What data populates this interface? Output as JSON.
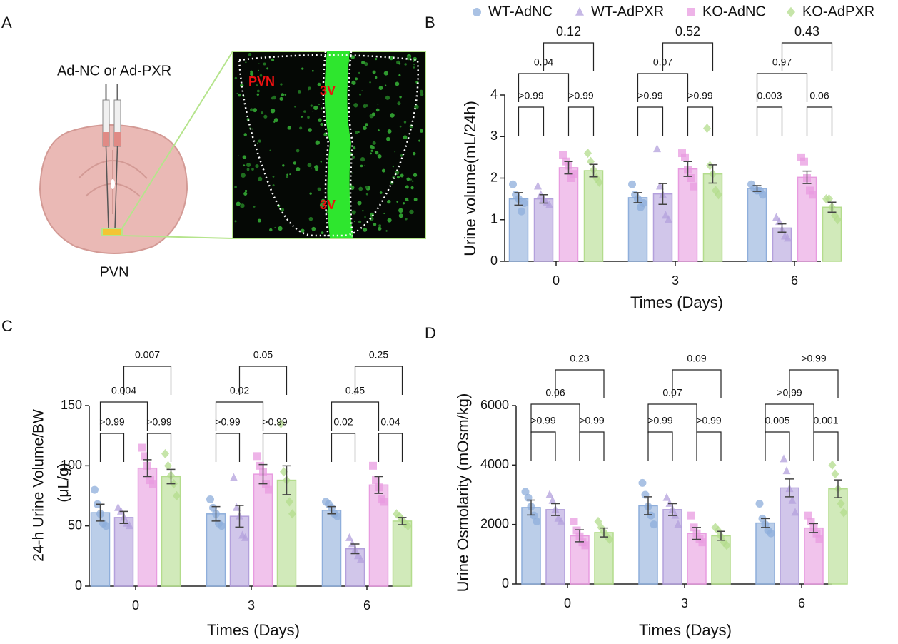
{
  "panel_a": {
    "panel": "A",
    "injection": "Ad-NC or Ad-PXR",
    "region": "PVN",
    "image_labels": [
      "PVN",
      "3V",
      "3V"
    ]
  },
  "chart_data": [
    {
      "type": "bar",
      "panel": "B",
      "ylabel": "Urine volume(mL/24h)",
      "xlabel": "Times (Days)",
      "legend": "top",
      "categories": [
        "0",
        "3",
        "6"
      ],
      "ylim": [
        0,
        4
      ],
      "yticks": [
        0,
        1,
        2,
        3,
        4
      ],
      "series": [
        {
          "name": "WT-AdNC",
          "color": "#8eaedb",
          "marker": "circle",
          "values": [
            1.5,
            1.53,
            1.75
          ],
          "errors": [
            0.15,
            0.12,
            0.07
          ],
          "points": [
            [
              1.85,
              1.6,
              1.5,
              1.2,
              1.4
            ],
            [
              1.85,
              1.6,
              1.5,
              1.3,
              1.4
            ],
            [
              1.85,
              1.75,
              1.7,
              1.7,
              1.6
            ]
          ]
        },
        {
          "name": "WT-AdPXR",
          "color": "#b3a0dc",
          "marker": "triangle",
          "values": [
            1.5,
            1.62,
            0.8
          ],
          "errors": [
            0.1,
            0.25,
            0.1
          ],
          "points": [
            [
              1.8,
              1.6,
              1.5,
              1.4,
              1.35
            ],
            [
              2.7,
              1.8,
              1.6,
              1.1,
              1.0
            ],
            [
              1.05,
              0.95,
              0.75,
              0.6,
              0.55
            ]
          ]
        },
        {
          "name": "KO-AdNC",
          "color": "#e89be0",
          "marker": "square",
          "values": [
            2.25,
            2.22,
            2.02
          ],
          "errors": [
            0.15,
            0.18,
            0.15
          ],
          "points": [
            [
              2.55,
              2.4,
              2.3,
              2.0,
              2.1
            ],
            [
              2.6,
              2.5,
              2.2,
              2.0,
              1.8
            ],
            [
              2.5,
              2.4,
              2.0,
              1.7,
              1.6
            ]
          ]
        },
        {
          "name": "KO-AdPXR",
          "color": "#b3dc8c",
          "marker": "diamond",
          "values": [
            2.18,
            2.1,
            1.3
          ],
          "errors": [
            0.15,
            0.22,
            0.12
          ],
          "points": [
            [
              2.6,
              2.4,
              2.2,
              2.0,
              1.9
            ],
            [
              3.2,
              2.3,
              2.1,
              1.7,
              1.6
            ],
            [
              1.5,
              1.5,
              1.3,
              1.1,
              1.0
            ]
          ]
        }
      ],
      "p_values": [
        [
          ">0.99",
          ">0.99",
          "0.04",
          "0.12"
        ],
        [
          ">0.99",
          ">0.99",
          "0.07",
          "0.52"
        ],
        [
          "0.003",
          "0.06",
          "0.97",
          "0.43"
        ]
      ]
    },
    {
      "type": "bar",
      "panel": "C",
      "ylabel": [
        "24-h Urine Volume/BW",
        "(μL/g)"
      ],
      "xlabel": "Times (Days)",
      "categories": [
        "0",
        "3",
        "6"
      ],
      "ylim": [
        0,
        150
      ],
      "yticks": [
        0,
        50,
        100,
        150
      ],
      "series": [
        {
          "color": "#8eaedb",
          "marker": "circle",
          "values": [
            61,
            60,
            63
          ],
          "errors": [
            7,
            6,
            3
          ],
          "points": [
            [
              80,
              68,
              60,
              52,
              50
            ],
            [
              72,
              65,
              60,
              52,
              50
            ],
            [
              70,
              68,
              65,
              60,
              58
            ]
          ]
        },
        {
          "color": "#b3a0dc",
          "marker": "triangle",
          "values": [
            57,
            58,
            31
          ],
          "errors": [
            5,
            9,
            4
          ],
          "points": [
            [
              65,
              62,
              57,
              52,
              50
            ],
            [
              90,
              65,
              58,
              42,
              40
            ],
            [
              40,
              35,
              30,
              25,
              22
            ]
          ]
        },
        {
          "color": "#e89be0",
          "marker": "square",
          "values": [
            98,
            93,
            84
          ],
          "errors": [
            7,
            8,
            7
          ],
          "points": [
            [
              115,
              108,
              100,
              88,
              85
            ],
            [
              108,
              100,
              95,
              85,
              80
            ],
            [
              100,
              88,
              82,
              72,
              70
            ]
          ]
        },
        {
          "color": "#b3dc8c",
          "marker": "diamond",
          "values": [
            91,
            88,
            54
          ],
          "errors": [
            6,
            12,
            3
          ],
          "points": [
            [
              110,
              100,
              92,
              85,
              75
            ],
            [
              135,
              95,
              88,
              70,
              60
            ],
            [
              60,
              58,
              55,
              52,
              50
            ]
          ]
        }
      ],
      "p_values": [
        [
          ">0.99",
          ">0.99",
          "0.004",
          "0.007"
        ],
        [
          ">0.99",
          ">0.99",
          "0.02",
          "0.05"
        ],
        [
          "0.02",
          "0.04",
          "0.45",
          "0.25"
        ]
      ]
    },
    {
      "type": "bar",
      "panel": "D",
      "ylabel": "Urine Osmolarity (mOsm/kg)",
      "xlabel": "Times (Days)",
      "categories": [
        "0",
        "3",
        "6"
      ],
      "ylim": [
        0,
        6000
      ],
      "yticks": [
        0,
        2000,
        4000,
        6000
      ],
      "series": [
        {
          "color": "#8eaedb",
          "marker": "circle",
          "values": [
            2570,
            2630,
            2050
          ],
          "errors": [
            250,
            300,
            150
          ],
          "points": [
            [
              3100,
              2900,
              2600,
              2300,
              2100
            ],
            [
              3400,
              3000,
              2600,
              2300,
              2000
            ],
            [
              2700,
              2200,
              2000,
              1800,
              1700
            ]
          ]
        },
        {
          "color": "#b3a0dc",
          "marker": "triangle",
          "values": [
            2500,
            2500,
            3230
          ],
          "errors": [
            200,
            200,
            300
          ],
          "points": [
            [
              3000,
              2800,
              2500,
              2200,
              2100
            ],
            [
              2900,
              2700,
              2500,
              2300,
              2000
            ],
            [
              4200,
              3800,
              3200,
              2800,
              2400
            ]
          ]
        },
        {
          "color": "#e89be0",
          "marker": "square",
          "values": [
            1620,
            1700,
            1880
          ],
          "errors": [
            200,
            200,
            150
          ],
          "points": [
            [
              2100,
              1800,
              1600,
              1400,
              1300
            ],
            [
              2300,
              1900,
              1700,
              1500,
              1400
            ],
            [
              2300,
              2100,
              1900,
              1700,
              1500
            ]
          ]
        },
        {
          "color": "#b3dc8c",
          "marker": "diamond",
          "values": [
            1730,
            1620,
            3200
          ],
          "errors": [
            150,
            150,
            300
          ],
          "points": [
            [
              2100,
              1900,
              1750,
              1600,
              1500
            ],
            [
              1900,
              1800,
              1600,
              1400,
              1300
            ],
            [
              4000,
              3700,
              3200,
              2700,
              2400
            ]
          ]
        }
      ],
      "p_values": [
        [
          ">0.99",
          ">0.99",
          "0.06",
          "0.23"
        ],
        [
          ">0.99",
          ">0.99",
          "0.07",
          "0.09"
        ],
        [
          "0.005",
          "0.001",
          ">0.99",
          ">0.99"
        ]
      ]
    }
  ]
}
